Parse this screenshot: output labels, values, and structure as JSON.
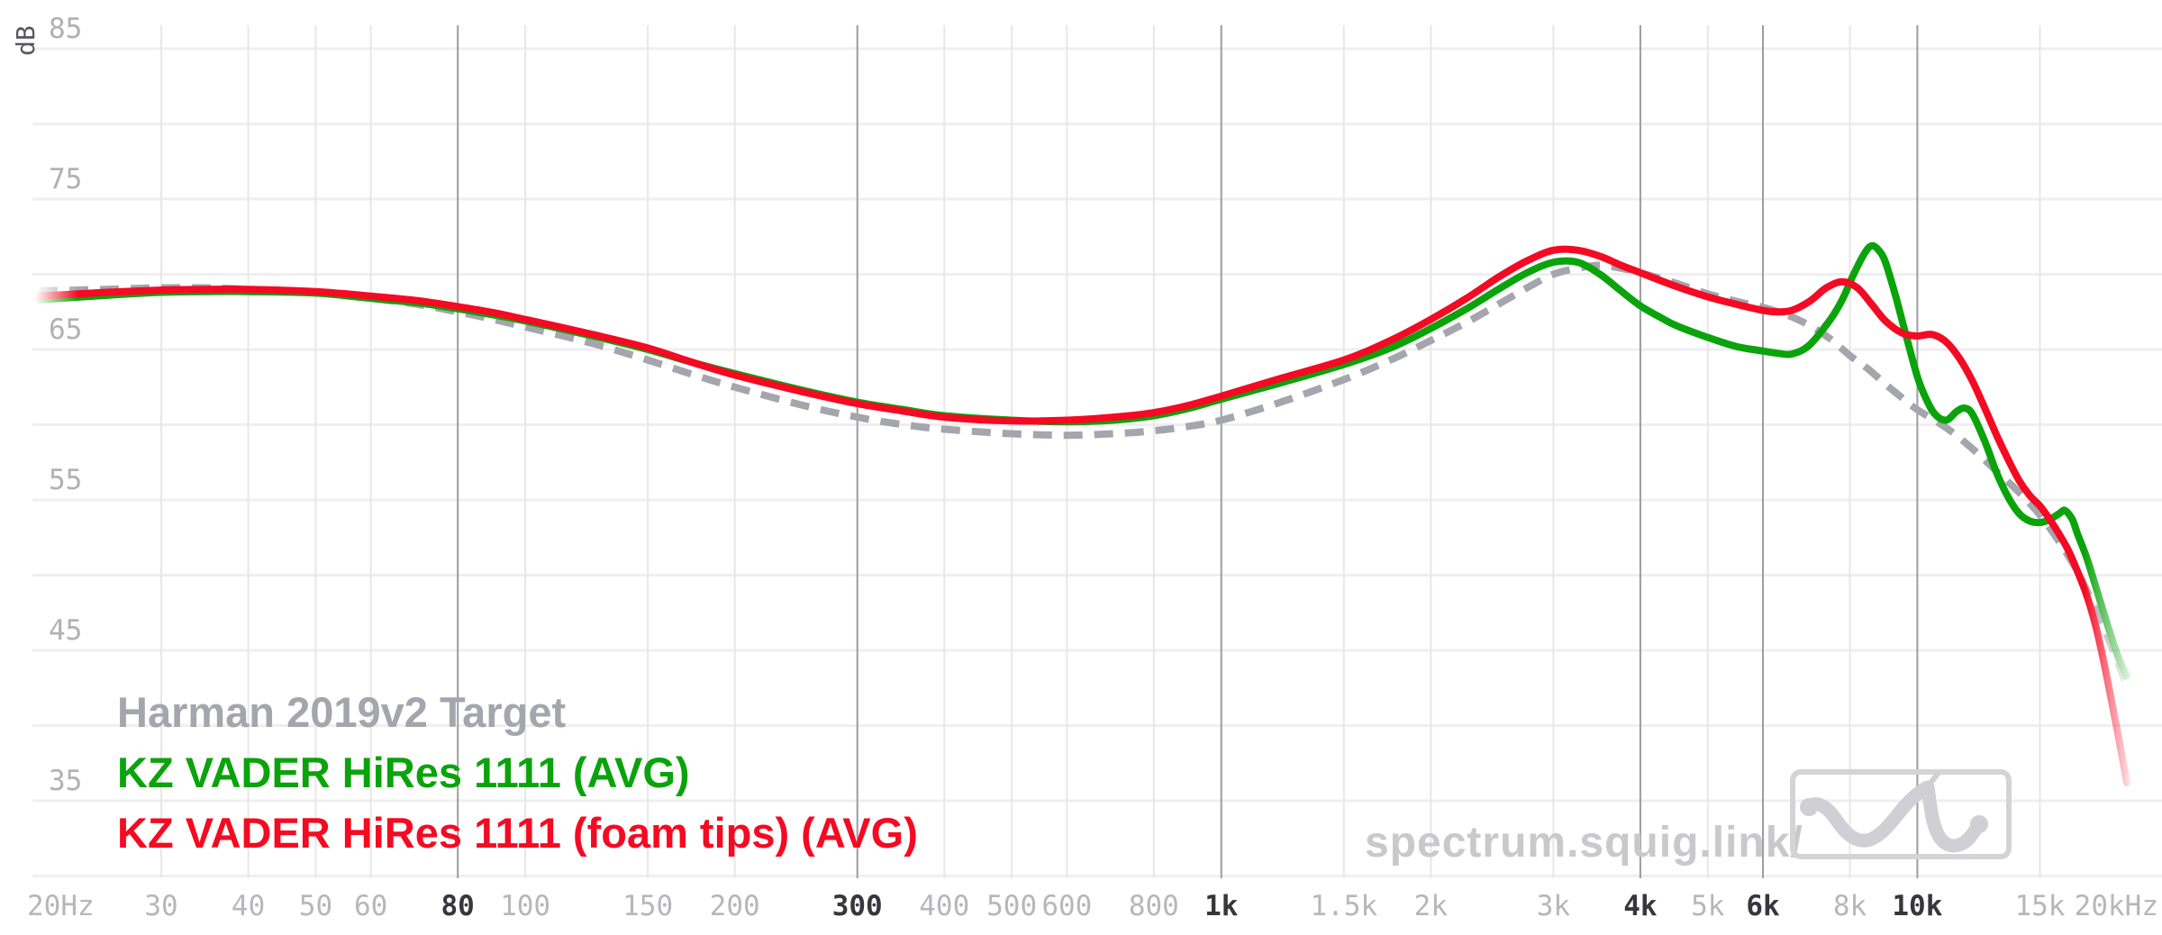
{
  "watermark": {
    "text": "spectrum.squig.link/",
    "color": "#c8c8cd"
  },
  "legend": {
    "items": [
      {
        "label": "Harman 2019v2 Target",
        "color": "#a5a5ad"
      },
      {
        "label": "KZ VADER HiRes 1111 (AVG)",
        "color": "#0ba30b"
      },
      {
        "label": "KZ VADER HiRes 1111 (foam tips) (AVG)",
        "color": "#f40a22"
      }
    ]
  },
  "axes": {
    "y_unit": "dB",
    "y_tick_labels": [
      85,
      75,
      65,
      55,
      45,
      35
    ],
    "y_gridlines_db": [
      85,
      80,
      75,
      70,
      65,
      60,
      55,
      50,
      45,
      40,
      35,
      30
    ],
    "x_scale": "log",
    "x_ticks": [
      {
        "label": "20Hz",
        "f": 20,
        "bold": false
      },
      {
        "label": "30",
        "f": 30,
        "bold": false
      },
      {
        "label": "40",
        "f": 40,
        "bold": false
      },
      {
        "label": "50",
        "f": 50,
        "bold": false
      },
      {
        "label": "60",
        "f": 60,
        "bold": false
      },
      {
        "label": "80",
        "f": 80,
        "bold": true
      },
      {
        "label": "100",
        "f": 100,
        "bold": false
      },
      {
        "label": "150",
        "f": 150,
        "bold": false
      },
      {
        "label": "200",
        "f": 200,
        "bold": false
      },
      {
        "label": "300",
        "f": 300,
        "bold": true
      },
      {
        "label": "400",
        "f": 400,
        "bold": false
      },
      {
        "label": "500",
        "f": 500,
        "bold": false
      },
      {
        "label": "600",
        "f": 600,
        "bold": false
      },
      {
        "label": "800",
        "f": 800,
        "bold": false
      },
      {
        "label": "1k",
        "f": 1000,
        "bold": true
      },
      {
        "label": "1.5k",
        "f": 1500,
        "bold": false
      },
      {
        "label": "2k",
        "f": 2000,
        "bold": false
      },
      {
        "label": "3k",
        "f": 3000,
        "bold": false
      },
      {
        "label": "4k",
        "f": 4000,
        "bold": true
      },
      {
        "label": "5k",
        "f": 5000,
        "bold": false
      },
      {
        "label": "6k",
        "f": 6000,
        "bold": true
      },
      {
        "label": "8k",
        "f": 8000,
        "bold": false
      },
      {
        "label": "10k",
        "f": 10000,
        "bold": true
      },
      {
        "label": "15k",
        "f": 15000,
        "bold": false
      },
      {
        "label": "20kHz",
        "f": 20000,
        "bold": false
      }
    ]
  },
  "colors": {
    "grid_vertical_light": "#e7e7ea",
    "grid_vertical_dark": "#9c9ca2",
    "grid_horizontal": "#efeff2",
    "logo_gray": "#cfcfd4"
  },
  "chart_data": {
    "type": "line",
    "x_scale": "log",
    "x_range": [
      20,
      20000
    ],
    "ylim": [
      30,
      88
    ],
    "ylabel": "dB",
    "grid": true,
    "legend_position": "bottom-left",
    "series": [
      {
        "name": "Harman 2019v2 Target",
        "color": "#a5a5ad",
        "style": "dashed",
        "points": [
          [
            20,
            68.9
          ],
          [
            25,
            69.0
          ],
          [
            30,
            69.1
          ],
          [
            35,
            69.1
          ],
          [
            40,
            69.0
          ],
          [
            50,
            68.8
          ],
          [
            60,
            68.4
          ],
          [
            70,
            68.0
          ],
          [
            80,
            67.5
          ],
          [
            90,
            67.0
          ],
          [
            100,
            66.5
          ],
          [
            125,
            65.4
          ],
          [
            150,
            64.3
          ],
          [
            175,
            63.3
          ],
          [
            200,
            62.5
          ],
          [
            250,
            61.3
          ],
          [
            300,
            60.5
          ],
          [
            350,
            60.0
          ],
          [
            400,
            59.7
          ],
          [
            500,
            59.4
          ],
          [
            600,
            59.3
          ],
          [
            700,
            59.4
          ],
          [
            800,
            59.6
          ],
          [
            900,
            59.9
          ],
          [
            1000,
            60.3
          ],
          [
            1200,
            61.4
          ],
          [
            1500,
            63.0
          ],
          [
            1750,
            64.3
          ],
          [
            2000,
            65.6
          ],
          [
            2250,
            66.8
          ],
          [
            2500,
            68.0
          ],
          [
            2750,
            69.1
          ],
          [
            3000,
            70.0
          ],
          [
            3250,
            70.4
          ],
          [
            3500,
            70.6
          ],
          [
            3750,
            70.4
          ],
          [
            4000,
            70.1
          ],
          [
            4500,
            69.4
          ],
          [
            5000,
            68.7
          ],
          [
            5500,
            68.2
          ],
          [
            6000,
            67.8
          ],
          [
            6500,
            67.3
          ],
          [
            7000,
            66.6
          ],
          [
            7500,
            65.7
          ],
          [
            8000,
            64.6
          ],
          [
            8500,
            63.7
          ],
          [
            9000,
            62.7
          ],
          [
            9500,
            61.8
          ],
          [
            10000,
            61.0
          ],
          [
            11000,
            59.8
          ],
          [
            12000,
            58.4
          ],
          [
            13000,
            56.9
          ],
          [
            14000,
            55.5
          ],
          [
            15000,
            54.0
          ],
          [
            16000,
            52.2
          ],
          [
            17000,
            50.2
          ],
          [
            18000,
            47.8
          ],
          [
            19000,
            45.3
          ],
          [
            20000,
            42.7
          ]
        ]
      },
      {
        "name": "KZ VADER HiRes 1111 (AVG)",
        "color": "#0ba30b",
        "style": "solid",
        "points": [
          [
            20,
            68.3
          ],
          [
            25,
            68.6
          ],
          [
            30,
            68.8
          ],
          [
            35,
            68.85
          ],
          [
            40,
            68.85
          ],
          [
            50,
            68.75
          ],
          [
            60,
            68.4
          ],
          [
            70,
            68.1
          ],
          [
            80,
            67.7
          ],
          [
            90,
            67.3
          ],
          [
            100,
            66.9
          ],
          [
            125,
            65.9
          ],
          [
            150,
            65.0
          ],
          [
            175,
            64.1
          ],
          [
            200,
            63.4
          ],
          [
            250,
            62.3
          ],
          [
            300,
            61.5
          ],
          [
            350,
            61.0
          ],
          [
            400,
            60.6
          ],
          [
            500,
            60.3
          ],
          [
            600,
            60.2
          ],
          [
            700,
            60.3
          ],
          [
            800,
            60.6
          ],
          [
            900,
            61.1
          ],
          [
            1000,
            61.7
          ],
          [
            1200,
            62.7
          ],
          [
            1500,
            64.0
          ],
          [
            1750,
            65.1
          ],
          [
            2000,
            66.4
          ],
          [
            2250,
            67.7
          ],
          [
            2500,
            69.0
          ],
          [
            2750,
            70.1
          ],
          [
            3000,
            70.8
          ],
          [
            3250,
            70.8
          ],
          [
            3500,
            70.0
          ],
          [
            3750,
            68.9
          ],
          [
            4000,
            67.9
          ],
          [
            4250,
            67.2
          ],
          [
            4500,
            66.6
          ],
          [
            5000,
            65.8
          ],
          [
            5500,
            65.2
          ],
          [
            6000,
            64.9
          ],
          [
            6300,
            64.75
          ],
          [
            6600,
            64.7
          ],
          [
            7000,
            65.3
          ],
          [
            7500,
            67.0
          ],
          [
            7800,
            68.3
          ],
          [
            8100,
            70.0
          ],
          [
            8400,
            71.4
          ],
          [
            8600,
            71.9
          ],
          [
            8800,
            71.6
          ],
          [
            9000,
            70.8
          ],
          [
            9300,
            68.6
          ],
          [
            9600,
            66.2
          ],
          [
            10000,
            63.2
          ],
          [
            10300,
            61.7
          ],
          [
            10600,
            60.7
          ],
          [
            11000,
            60.3
          ],
          [
            11400,
            60.9
          ],
          [
            11700,
            61.1
          ],
          [
            12000,
            60.7
          ],
          [
            12500,
            58.9
          ],
          [
            13000,
            56.8
          ],
          [
            13500,
            55.2
          ],
          [
            14000,
            54.1
          ],
          [
            14500,
            53.6
          ],
          [
            15000,
            53.5
          ],
          [
            15500,
            53.7
          ],
          [
            16000,
            54.1
          ],
          [
            16300,
            54.3
          ],
          [
            16700,
            53.7
          ],
          [
            17000,
            52.7
          ],
          [
            17500,
            51.2
          ],
          [
            18000,
            49.4
          ],
          [
            18500,
            47.6
          ],
          [
            19000,
            45.9
          ],
          [
            19500,
            44.4
          ],
          [
            20000,
            43.3
          ]
        ]
      },
      {
        "name": "KZ VADER HiRes 1111 (foam tips) (AVG)",
        "color": "#f40a22",
        "style": "solid",
        "points": [
          [
            20,
            68.55
          ],
          [
            25,
            68.8
          ],
          [
            30,
            68.95
          ],
          [
            35,
            69.0
          ],
          [
            40,
            69.0
          ],
          [
            50,
            68.85
          ],
          [
            60,
            68.55
          ],
          [
            70,
            68.25
          ],
          [
            80,
            67.85
          ],
          [
            90,
            67.45
          ],
          [
            100,
            67.0
          ],
          [
            125,
            66.0
          ],
          [
            150,
            65.1
          ],
          [
            175,
            64.1
          ],
          [
            200,
            63.3
          ],
          [
            250,
            62.2
          ],
          [
            300,
            61.4
          ],
          [
            350,
            60.9
          ],
          [
            400,
            60.5
          ],
          [
            500,
            60.25
          ],
          [
            600,
            60.3
          ],
          [
            700,
            60.5
          ],
          [
            800,
            60.8
          ],
          [
            900,
            61.3
          ],
          [
            1000,
            61.9
          ],
          [
            1200,
            63.0
          ],
          [
            1500,
            64.3
          ],
          [
            1750,
            65.6
          ],
          [
            2000,
            67.0
          ],
          [
            2250,
            68.4
          ],
          [
            2500,
            69.8
          ],
          [
            2750,
            70.9
          ],
          [
            3000,
            71.6
          ],
          [
            3250,
            71.6
          ],
          [
            3500,
            71.2
          ],
          [
            3750,
            70.6
          ],
          [
            4000,
            70.1
          ],
          [
            4500,
            69.2
          ],
          [
            5000,
            68.5
          ],
          [
            5500,
            68.0
          ],
          [
            6000,
            67.6
          ],
          [
            6300,
            67.5
          ],
          [
            6600,
            67.6
          ],
          [
            7000,
            68.2
          ],
          [
            7400,
            69.1
          ],
          [
            7800,
            69.5
          ],
          [
            8200,
            69.1
          ],
          [
            8600,
            68.0
          ],
          [
            9000,
            66.9
          ],
          [
            9500,
            66.1
          ],
          [
            10000,
            65.9
          ],
          [
            10500,
            66.0
          ],
          [
            11000,
            65.5
          ],
          [
            11500,
            64.4
          ],
          [
            12000,
            62.9
          ],
          [
            12500,
            61.1
          ],
          [
            13000,
            59.3
          ],
          [
            13500,
            57.7
          ],
          [
            14000,
            56.3
          ],
          [
            14500,
            55.3
          ],
          [
            15000,
            54.6
          ],
          [
            15500,
            53.7
          ],
          [
            16000,
            52.7
          ],
          [
            16500,
            51.6
          ],
          [
            17000,
            50.2
          ],
          [
            17500,
            48.7
          ],
          [
            18000,
            46.8
          ],
          [
            18500,
            44.4
          ],
          [
            19000,
            41.7
          ],
          [
            19500,
            39.0
          ],
          [
            20000,
            36.2
          ]
        ]
      }
    ]
  }
}
